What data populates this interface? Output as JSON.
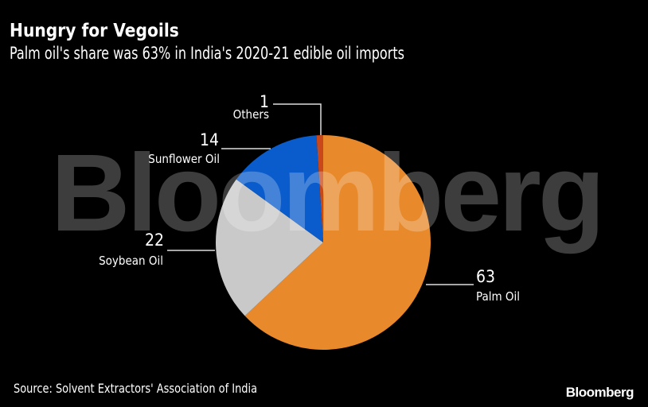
{
  "chart_data": {
    "type": "pie",
    "title": "Hungry for Vegoils",
    "subtitle": "Palm oil's share was 63% in India's 2020-21 edible oil imports",
    "categories": [
      "Palm Oil",
      "Soybean Oil",
      "Sunflower Oil",
      "Others"
    ],
    "values": [
      63,
      22,
      14,
      1
    ],
    "colors": [
      "#e8892b",
      "#c9c9c9",
      "#0a5ccc",
      "#c8481c"
    ],
    "start": "12 o'clock, clockwise",
    "source": "Source: Solvent Extractors' Association of India"
  },
  "watermark": "Bloomberg",
  "logo": "Bloomberg"
}
